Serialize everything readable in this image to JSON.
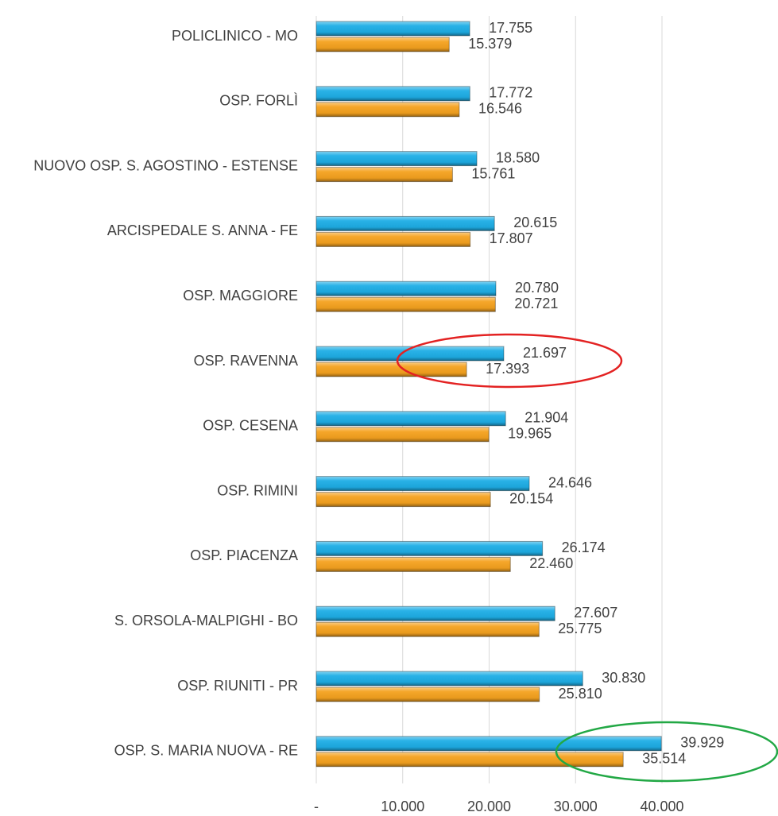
{
  "chart_data": {
    "type": "bar",
    "orientation": "horizontal",
    "categories": [
      "POLICLINICO - MO",
      "OSP. FORLÌ",
      "NUOVO OSP. S. AGOSTINO - ESTENSE",
      "ARCISPEDALE S. ANNA - FE",
      "OSP. MAGGIORE",
      "OSP. RAVENNA",
      "OSP. CESENA",
      "OSP. RIMINI",
      "OSP. PIACENZA",
      "S. ORSOLA-MALPIGHI - BO",
      "OSP. RIUNITI - PR",
      "OSP. S. MARIA NUOVA - RE"
    ],
    "series": [
      {
        "color": "#1eaee6",
        "values": [
          17755,
          17772,
          18580,
          20615,
          20780,
          21697,
          21904,
          24646,
          26174,
          27607,
          30830,
          39929
        ],
        "value_labels": [
          "17.755",
          "17.772",
          "18.580",
          "20.615",
          "20.780",
          "21.697",
          "21.904",
          "24.646",
          "26.174",
          "27.607",
          "30.830",
          "39.929"
        ]
      },
      {
        "color": "#f5a21f",
        "values": [
          15379,
          16546,
          15761,
          17807,
          20721,
          17393,
          19965,
          20154,
          22460,
          25775,
          25810,
          35514
        ],
        "value_labels": [
          "15.379",
          "16.546",
          "15.761",
          "17.807",
          "20.721",
          "17.393",
          "19.965",
          "20.154",
          "22.460",
          "25.775",
          "25.810",
          "35.514"
        ]
      }
    ],
    "xlim": [
      0,
      40000
    ],
    "xticks": [
      {
        "value": 0,
        "label": "-"
      },
      {
        "value": 10000,
        "label": "10.000"
      },
      {
        "value": 20000,
        "label": "20.000"
      },
      {
        "value": 30000,
        "label": "30.000"
      },
      {
        "value": 40000,
        "label": "40.000"
      }
    ],
    "grid": true
  }
}
